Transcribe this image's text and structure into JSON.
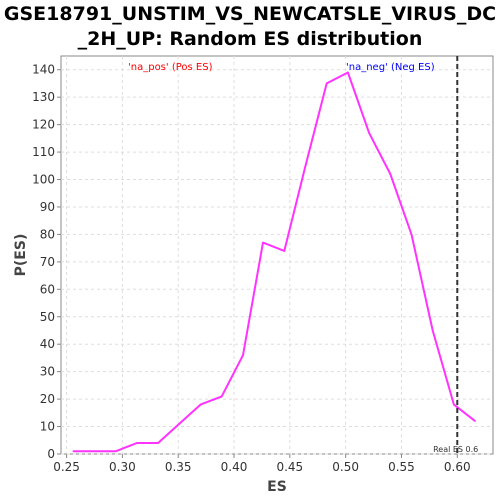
{
  "chart_data": {
    "type": "line",
    "title_line1": "GSE18791_UNSTIM_VS_NEWCATSLE_VIRUS_DC",
    "title_line2": "_2H_UP: Random ES distribution",
    "xlabel": "ES",
    "ylabel": "P(ES)",
    "xlim": [
      0.245,
      0.632
    ],
    "ylim": [
      0,
      145
    ],
    "xticks": [
      0.25,
      0.3,
      0.35,
      0.4,
      0.45,
      0.5,
      0.55,
      0.6
    ],
    "yticks": [
      0,
      10,
      20,
      30,
      40,
      50,
      60,
      70,
      80,
      90,
      100,
      110,
      120,
      130,
      140
    ],
    "grid": true,
    "legend": [
      {
        "label": "'na_pos' (Pos ES)",
        "color": "#ff0000",
        "position": "top-left"
      },
      {
        "label": "'na_neg' (Neg ES)",
        "color": "#0000ff",
        "position": "top-right"
      }
    ],
    "series": [
      {
        "color": "#ff33ff",
        "x": [
          0.256,
          0.275,
          0.294,
          0.313,
          0.332,
          0.351,
          0.37,
          0.389,
          0.408,
          0.426,
          0.445,
          0.464,
          0.483,
          0.502,
          0.521,
          0.54,
          0.559,
          0.578,
          0.597,
          0.616
        ],
        "y": [
          1,
          1,
          1,
          4,
          4,
          11,
          18,
          21,
          36,
          77,
          74,
          105,
          135,
          139,
          117,
          102,
          80,
          45,
          18,
          12
        ]
      }
    ],
    "real_es": {
      "x": 0.6,
      "label": "Real ES 0.6"
    }
  }
}
